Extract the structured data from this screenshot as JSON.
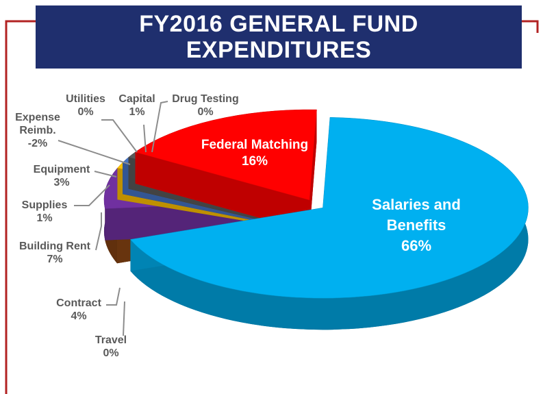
{
  "chart_data": {
    "type": "pie",
    "title": "FY2016 GENERAL FUND EXPENDITURES",
    "categories": [
      "Salaries and Benefits",
      "Travel",
      "Contract",
      "Building Rent",
      "Supplies",
      "Equipment",
      "Expense Reimb.",
      "Utilities",
      "Capital",
      "Drug Testing",
      "Federal Matching"
    ],
    "values": [
      66,
      0,
      4,
      7,
      1,
      3,
      -2,
      0,
      1,
      0,
      16
    ],
    "value_labels": [
      "66%",
      "0%",
      "4%",
      "7%",
      "1%",
      "3%",
      "-2%",
      "0%",
      "1%",
      "0%",
      "16%"
    ],
    "colors": [
      "#00b0f0",
      "#f4a460",
      "#8b4513",
      "#7030a0",
      "#ffc000",
      "#4472c4",
      "#c00000",
      "#33cc33",
      "#595959",
      "#bfbfbf",
      "#ff0000"
    ]
  }
}
